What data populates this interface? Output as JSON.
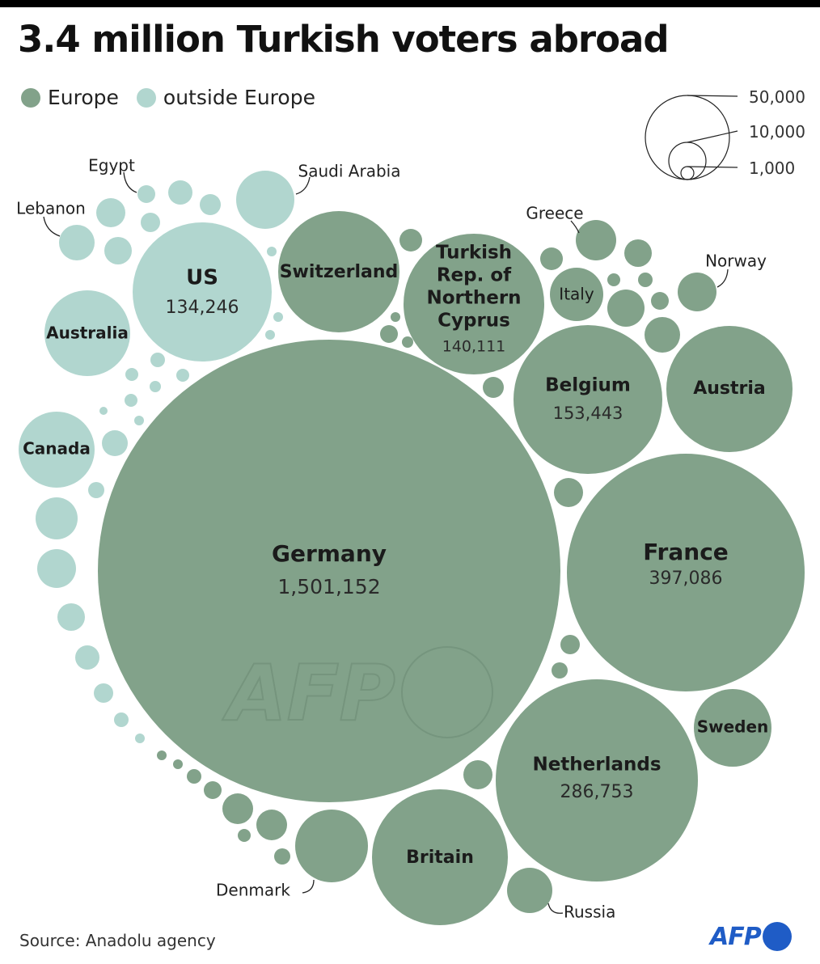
{
  "title": "3.4 million Turkish voters abroad",
  "legend": {
    "europe_label": "Europe",
    "outside_label": "outside Europe",
    "europe_color": "#82a28a",
    "outside_color": "#b1d6cf"
  },
  "size_legend": [
    "50,000",
    "10,000",
    "1,000"
  ],
  "source": "Source: Anadolu agency",
  "logo_text": "AFP",
  "watermark_text": "AFP",
  "chart_data": {
    "type": "packed-bubble",
    "title": "3.4 million Turkish voters abroad",
    "groups": [
      "Europe",
      "outside Europe"
    ],
    "series": [
      {
        "name": "Germany",
        "group": "Europe",
        "value": 1501152
      },
      {
        "name": "France",
        "group": "Europe",
        "value": 397086
      },
      {
        "name": "Netherlands",
        "group": "Europe",
        "value": 286753
      },
      {
        "name": "Belgium",
        "group": "Europe",
        "value": 153443
      },
      {
        "name": "Turkish Rep. of Northern Cyprus",
        "group": "Europe",
        "value": 140111
      },
      {
        "name": "US",
        "group": "outside Europe",
        "value": 134246
      },
      {
        "name": "Switzerland",
        "group": "Europe"
      },
      {
        "name": "Austria",
        "group": "Europe"
      },
      {
        "name": "Britain",
        "group": "Europe"
      },
      {
        "name": "Sweden",
        "group": "Europe"
      },
      {
        "name": "Australia",
        "group": "outside Europe"
      },
      {
        "name": "Canada",
        "group": "outside Europe"
      },
      {
        "name": "Italy",
        "group": "Europe"
      },
      {
        "name": "Denmark",
        "group": "Europe"
      },
      {
        "name": "Norway",
        "group": "Europe"
      },
      {
        "name": "Greece",
        "group": "Europe"
      },
      {
        "name": "Russia",
        "group": "Europe"
      },
      {
        "name": "Saudi Arabia",
        "group": "outside Europe"
      },
      {
        "name": "Lebanon",
        "group": "outside Europe"
      },
      {
        "name": "Egypt",
        "group": "outside Europe"
      }
    ]
  }
}
